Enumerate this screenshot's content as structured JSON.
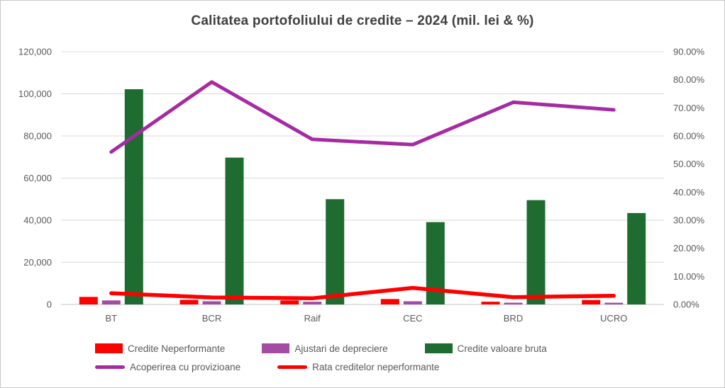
{
  "chart_data": {
    "type": "combo-bar-line",
    "title": "Calitatea portofoliului de credite – 2024 (mil. lei & %)",
    "categories": [
      "BT",
      "BCR",
      "Raif",
      "CEC",
      "BRD",
      "UCRO"
    ],
    "bar_series": [
      {
        "name": "Credite Neperformante",
        "color": "#FF0000",
        "axis": "left",
        "values": [
          3600,
          2200,
          1900,
          2600,
          1300,
          2100
        ]
      },
      {
        "name": "Ajustari de depreciere",
        "color": "#A44CA4",
        "axis": "left",
        "values": [
          1900,
          1500,
          1300,
          1500,
          850,
          800
        ]
      },
      {
        "name": "Credite valoare bruta",
        "color": "#1E6C30",
        "axis": "left",
        "values": [
          102200,
          69700,
          50000,
          39100,
          49500,
          43400
        ]
      }
    ],
    "line_series": [
      {
        "name": "Acoperirea cu provizioane",
        "color": "#A62BA3",
        "axis": "right",
        "values": [
          54.3,
          79.2,
          58.8,
          56.9,
          72.0,
          69.3
        ]
      },
      {
        "name": "Rata creditelor neperformante",
        "color": "#FF0000",
        "axis": "right",
        "values": [
          4.0,
          2.5,
          2.2,
          5.9,
          2.6,
          3.1
        ]
      }
    ],
    "left_axis": {
      "min": 0,
      "max": 120000,
      "step": 20000,
      "tick_labels": [
        "0",
        "20,000",
        "40,000",
        "60,000",
        "80,000",
        "100,000",
        "120,000"
      ]
    },
    "right_axis": {
      "min": 0,
      "max": 90,
      "step": 10,
      "tick_labels": [
        "0.00%",
        "10.00%",
        "20.00%",
        "30.00%",
        "40.00%",
        "50.00%",
        "60.00%",
        "70.00%",
        "80.00%",
        "90.00%"
      ]
    },
    "grid": "horizontal",
    "legend_position": "bottom",
    "colors": {
      "gridline": "#D9D9D9",
      "axis_text": "#595959",
      "title_text": "#404040"
    }
  }
}
